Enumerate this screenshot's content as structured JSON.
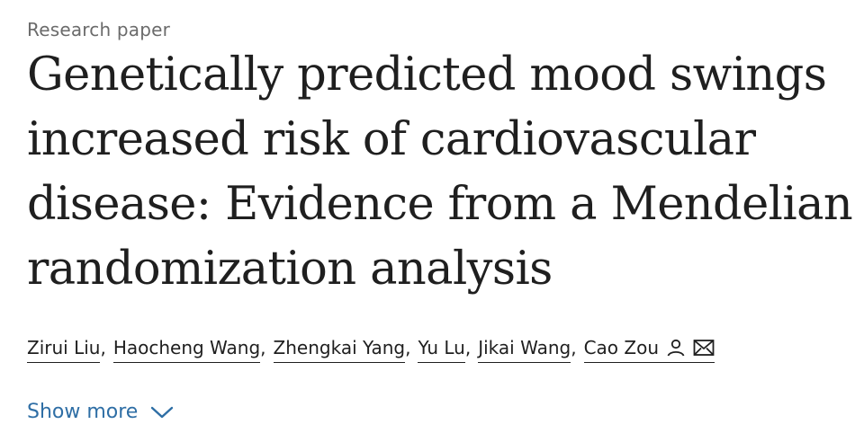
{
  "article_type": "Research paper",
  "title_lines": [
    "Genetically predicted mood swings",
    "increased risk of cardiovascular",
    "disease: Evidence from a Mendelian",
    "randomization analysis"
  ],
  "authors": [
    {
      "name": "Zirui Liu",
      "separator": ","
    },
    {
      "name": "Haocheng Wang",
      "separator": ","
    },
    {
      "name": "Zhengkai Yang",
      "separator": ","
    },
    {
      "name": "Yu Lu",
      "separator": ","
    },
    {
      "name": "Jikai Wang",
      "separator": ","
    },
    {
      "name": "Cao Zou",
      "separator": ""
    }
  ],
  "author_icons": [
    "person-icon",
    "envelope-icon"
  ],
  "show_more": {
    "label": "Show more",
    "icon": "chevron-down-icon"
  },
  "colors": {
    "link_blue": "#2e6ea5",
    "text": "#1f1f1f",
    "muted": "#6b6b6b"
  }
}
